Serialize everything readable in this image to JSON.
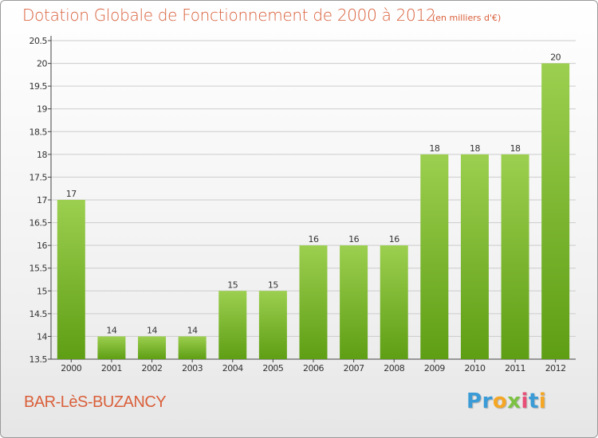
{
  "header": {
    "title": "Dotation Globale de Fonctionnement de 2000 à 2012",
    "subtitle": "(en milliers d'€)"
  },
  "footer": {
    "place": "BAR-LèS-BUZANCY",
    "logo": {
      "letters": [
        "P",
        "r",
        "o",
        "x",
        "i",
        "t",
        "i"
      ],
      "colors": [
        "#3a9bd6",
        "#3a9bd6",
        "#f5a623",
        "#7cc242",
        "#e94e77",
        "#3a9bd6",
        "#f5a623"
      ]
    }
  },
  "colors": {
    "bar_top": "#9ccf4f",
    "bar_bottom": "#5e9e14",
    "axis": "#444444",
    "grid": "#cccccc"
  },
  "chart_data": {
    "type": "bar",
    "categories": [
      "2000",
      "2001",
      "2002",
      "2003",
      "2004",
      "2005",
      "2006",
      "2007",
      "2008",
      "2009",
      "2010",
      "2011",
      "2012"
    ],
    "values": [
      17,
      14,
      14,
      14,
      15,
      15,
      16,
      16,
      16,
      18,
      18,
      18,
      20
    ],
    "data_labels": [
      "17",
      "14",
      "14",
      "14",
      "15",
      "15",
      "16",
      "16",
      "16",
      "18",
      "18",
      "18",
      "20"
    ],
    "yticks": [
      "13.5",
      "14",
      "14.5",
      "15",
      "15.5",
      "16",
      "16.5",
      "17",
      "17.5",
      "18",
      "18.5",
      "19",
      "19.5",
      "20",
      "20.5"
    ],
    "ylim": [
      13.5,
      20.5
    ],
    "ystep": 0.5,
    "grid": true,
    "xlabel": "",
    "ylabel": ""
  }
}
